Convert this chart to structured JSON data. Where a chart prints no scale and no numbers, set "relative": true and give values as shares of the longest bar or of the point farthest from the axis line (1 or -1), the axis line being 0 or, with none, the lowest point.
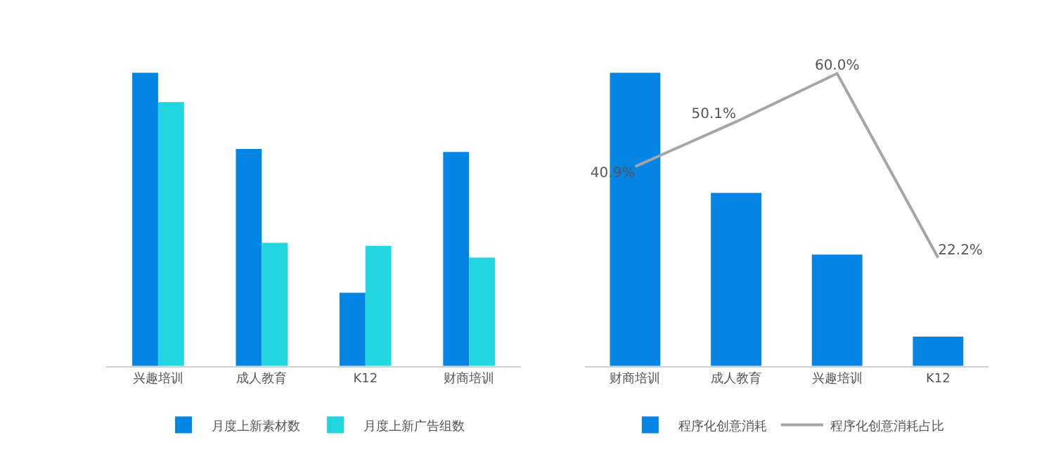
{
  "chart_data": [
    {
      "type": "bar",
      "relative": true,
      "categories": [
        "兴趣培训",
        "成人教育",
        "K12",
        "财商培训"
      ],
      "legend": "bottom",
      "series": [
        {
          "name": "月度上新素材数",
          "color": "#0485e4",
          "values": [
            1,
            0.74,
            0.25,
            0.73
          ]
        },
        {
          "name": "月度上新广告组数",
          "color": "#22d6e0",
          "values": [
            0.9,
            0.42,
            0.41,
            0.37
          ]
        }
      ]
    },
    {
      "type": "bar",
      "relative": true,
      "categories": [
        "财商培训",
        "成人教育",
        "兴趣培训",
        "K12"
      ],
      "legend": "bottom",
      "series": [
        {
          "name": "程序化创意消耗",
          "color": "#0485e4",
          "values": [
            1,
            0.59,
            0.38,
            0.1
          ]
        }
      ]
    },
    {
      "type": "line",
      "categories": [
        "财商培训",
        "成人教育",
        "兴趣培训",
        "K12"
      ],
      "tick_labels": false,
      "legend": "bottom",
      "marker": "none",
      "series": [
        {
          "name": "程序化创意消耗占比",
          "color": "#a5a5a5",
          "values": [
            40.9,
            50.1,
            60.0,
            22.2
          ],
          "value_labels": [
            "40.9%",
            "50.1%",
            "60.0%",
            "22.2%"
          ]
        }
      ]
    }
  ]
}
